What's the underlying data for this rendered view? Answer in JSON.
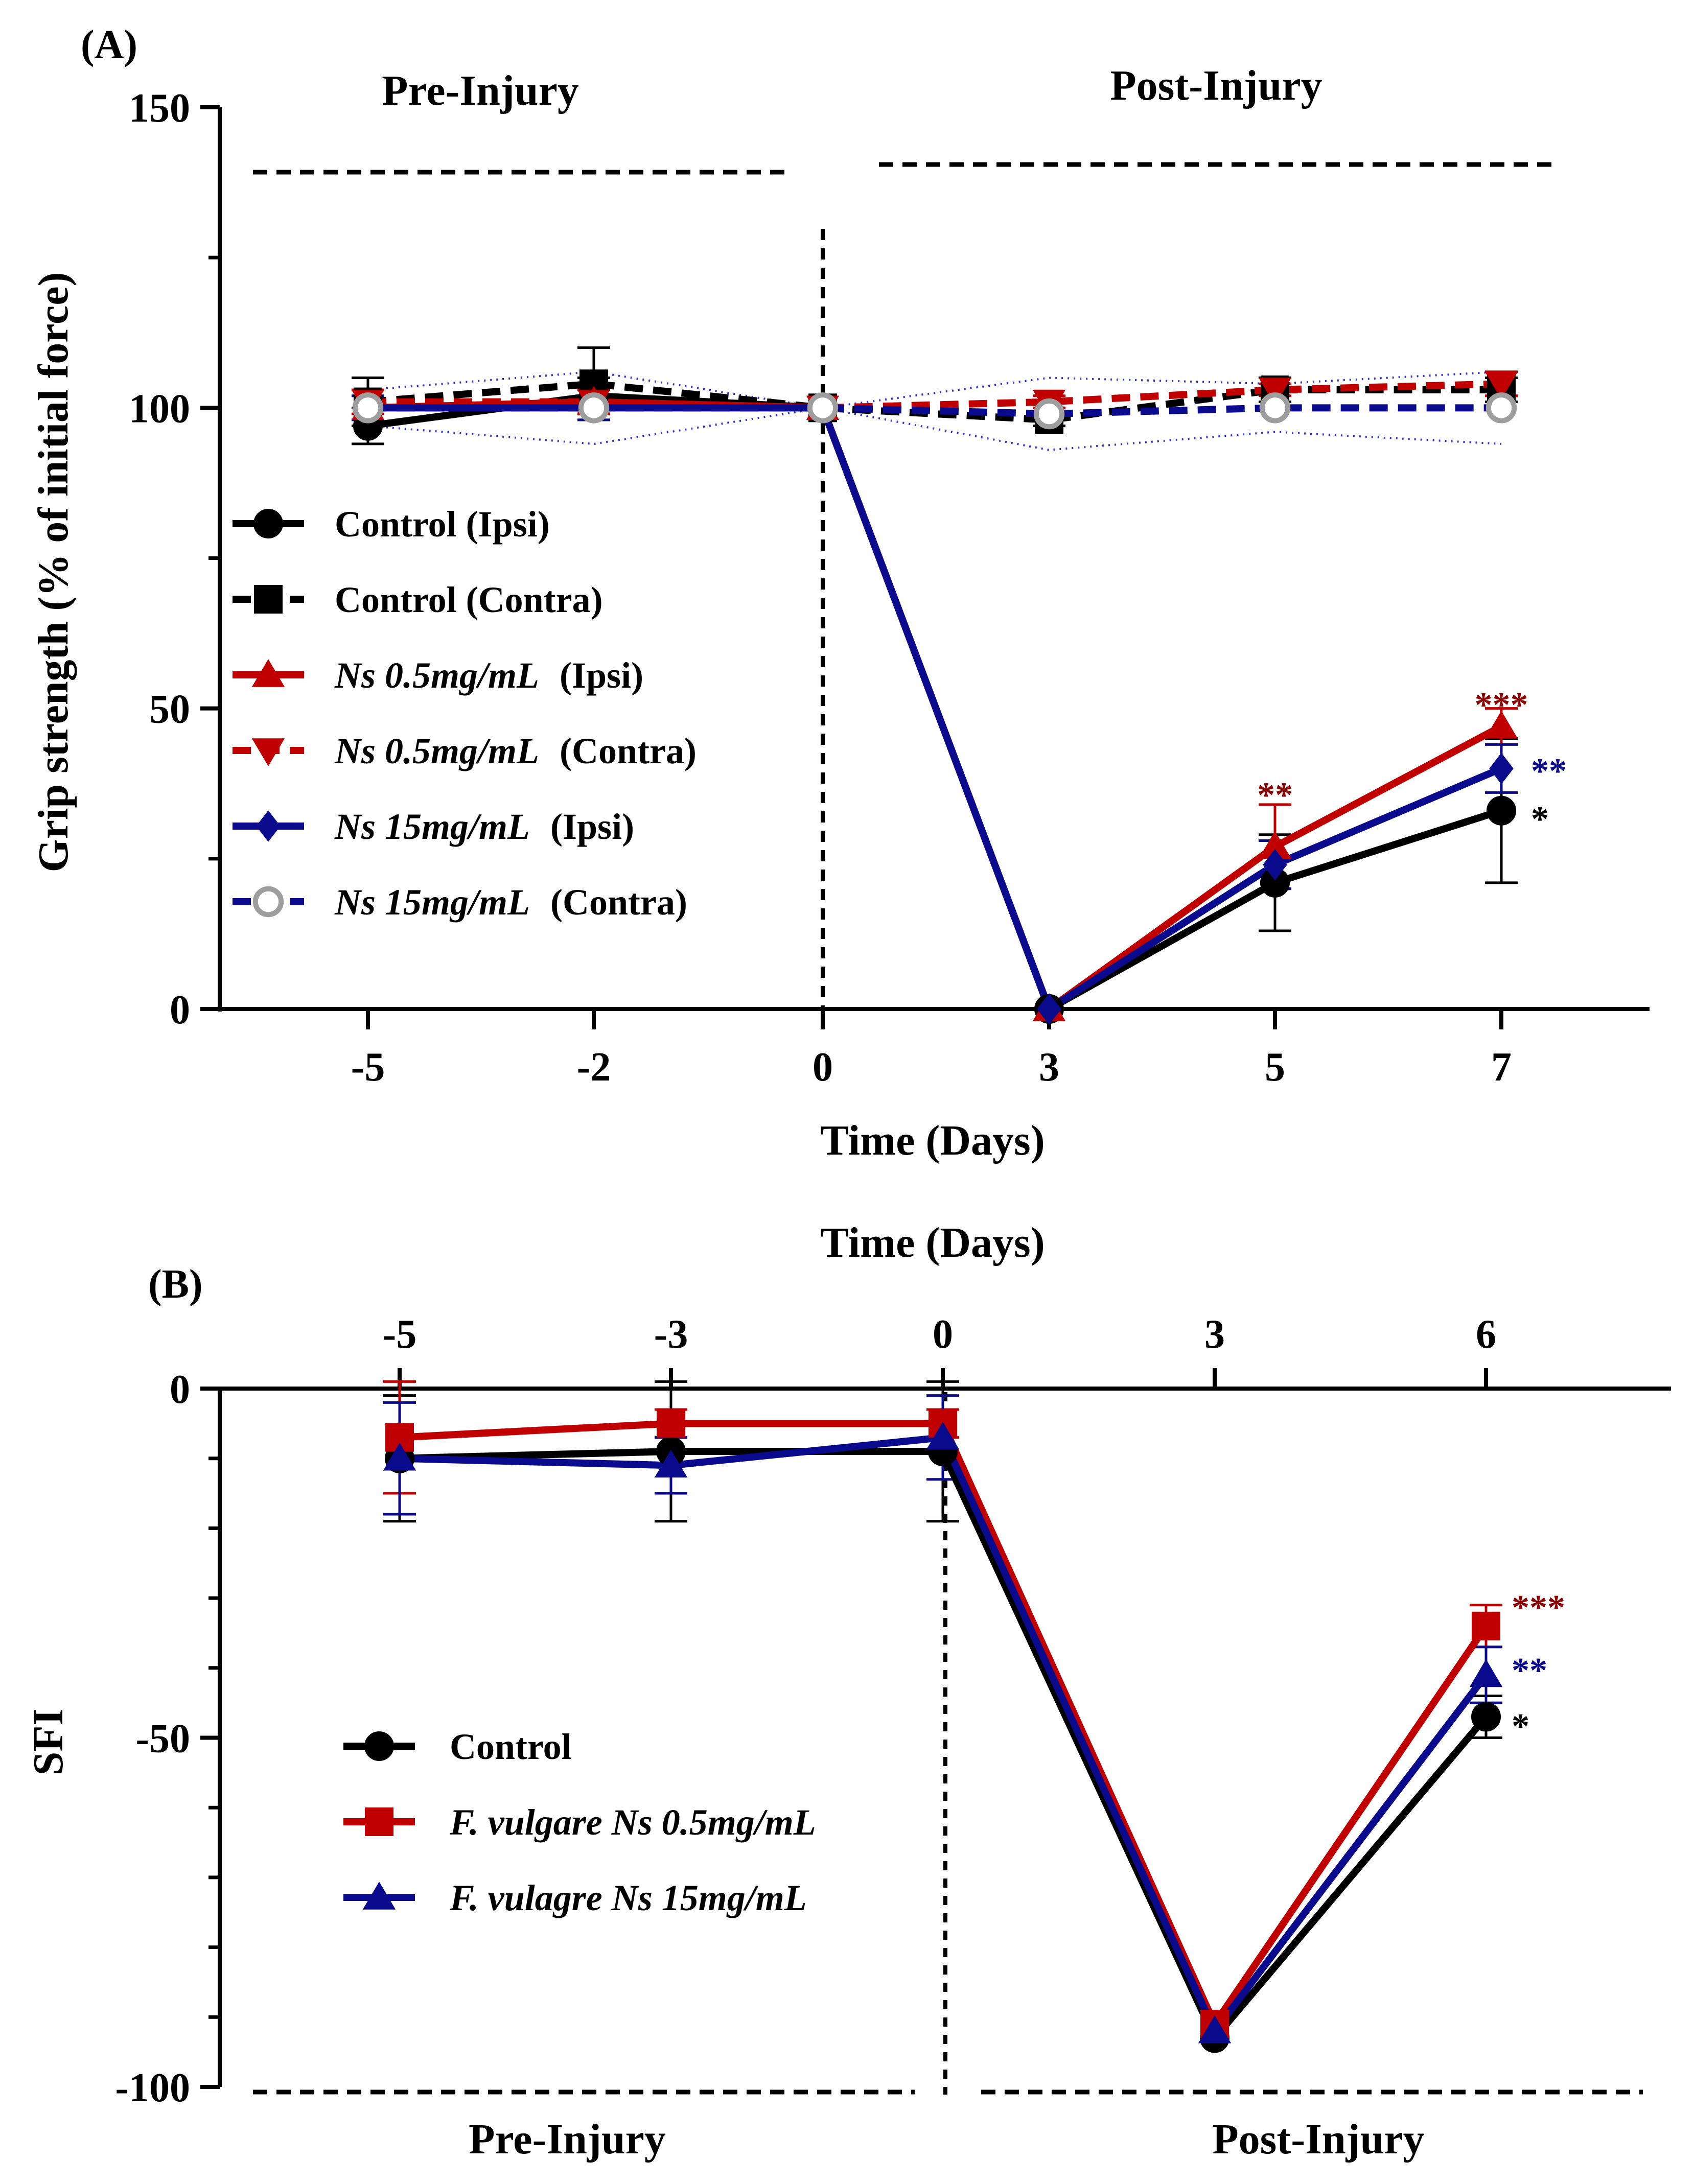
{
  "panel_a_label": "(A)",
  "panel_b_label": "(B)",
  "chart_data": [
    {
      "type": "line",
      "panel": "(A)",
      "xlabel": "Time (Days)",
      "ylabel": "Grip strength (% of initial force)",
      "x": [
        -5,
        -2,
        0,
        3,
        5,
        7
      ],
      "x_tick_labels": [
        "-5",
        "-2",
        "0",
        "3",
        "5",
        "7"
      ],
      "y_ticks": [
        "0",
        "50",
        "100",
        "150"
      ],
      "ylim": [
        0,
        150
      ],
      "grid": false,
      "legend_position": "left-middle",
      "section_labels": {
        "pre": "Pre-Injury",
        "post": "Post-Injury"
      },
      "series": [
        {
          "name": "Control (Ipsi)",
          "name_italic": "",
          "name_plain": "Control (Ipsi)",
          "color": "#000000",
          "marker": "circle",
          "dashed": false,
          "values": [
            97,
            102,
            100,
            0,
            21,
            33
          ],
          "err": [
            3,
            3,
            0,
            0,
            8,
            12
          ]
        },
        {
          "name": "Control (Contra)",
          "name_italic": "",
          "name_plain": "Control (Contra)",
          "color": "#000000",
          "marker": "square",
          "dashed": true,
          "values": [
            101,
            104,
            100,
            98,
            103,
            103
          ],
          "err": [
            4,
            6,
            0,
            1,
            2,
            2
          ]
        },
        {
          "name": "Ns 0.5mg/mL  (Ipsi)",
          "name_italic": "Ns 0.5mg/mL",
          "name_plain": " (Ipsi)",
          "color": "#c00000",
          "marker": "triangle-up",
          "dashed": false,
          "values": [
            100,
            101,
            100,
            0,
            27,
            47
          ],
          "err": [
            2,
            2,
            0,
            0,
            7,
            3
          ]
        },
        {
          "name": "Ns 0.5mg/mL  (Contra)",
          "name_italic": "Ns 0.5mg/mL",
          "name_plain": " (Contra)",
          "color": "#c00000",
          "marker": "triangle-down",
          "dashed": true,
          "values": [
            101,
            101,
            100,
            101,
            103,
            104
          ],
          "err": [
            2,
            2,
            0,
            1,
            1,
            2
          ]
        },
        {
          "name": "Ns 15mg/mL  (Ipsi)",
          "name_italic": "Ns 15mg/mL",
          "name_plain": " (Ipsi)",
          "color": "#0a0a8c",
          "marker": "diamond",
          "dashed": false,
          "values": [
            100,
            100,
            100,
            0,
            24,
            40
          ],
          "err": [
            2,
            2,
            0,
            0,
            4,
            4
          ]
        },
        {
          "name": "Ns 15mg/mL  (Contra)",
          "name_italic": "Ns 15mg/mL",
          "name_plain": " (Contra)",
          "color": "#0a0a8c",
          "marker": "circle-open",
          "marker_color": "#9e9e9e",
          "dashed": true,
          "values": [
            100,
            100,
            100,
            99,
            100,
            100
          ],
          "err": [
            3,
            6,
            0,
            6,
            4,
            6
          ]
        }
      ],
      "annotations": [
        {
          "x": 5,
          "y": 36,
          "text": "**",
          "color": "#8b0000",
          "anchor": "middle"
        },
        {
          "x": 7,
          "y": 51,
          "text": "***",
          "color": "#8b0000",
          "anchor": "middle"
        },
        {
          "x": 7,
          "y": 40,
          "text": "**",
          "color": "#0a0a8c",
          "anchor": "start"
        },
        {
          "x": 7,
          "y": 32,
          "text": "*",
          "color": "#000000",
          "anchor": "start"
        }
      ]
    },
    {
      "type": "line",
      "panel": "(B)",
      "xlabel": "Time (Days)",
      "ylabel": "SFI",
      "x": [
        -5,
        -3,
        0,
        3,
        6
      ],
      "x_tick_labels": [
        "-5",
        "-3",
        "0",
        "3",
        "6"
      ],
      "y_ticks": [
        "0",
        "-50",
        "-100"
      ],
      "ylim": [
        -100,
        0
      ],
      "grid": false,
      "legend_position": "left-bottom",
      "section_labels": {
        "pre": "Pre-Injury",
        "post": "Post-Injury"
      },
      "series": [
        {
          "name": "Control",
          "name_italic": "",
          "name_plain": "Control",
          "color": "#000000",
          "marker": "circle",
          "values": [
            -10,
            -9,
            -9,
            -93,
            -47
          ],
          "err": [
            9,
            10,
            10,
            0,
            3
          ]
        },
        {
          "name": "F. vulgare Ns 0.5mg/mL",
          "name_italic": "F. vulgare Ns 0.5mg/mL",
          "name_plain": "",
          "color": "#c00000",
          "marker": "square",
          "values": [
            -7,
            -5,
            -5,
            -91,
            -34
          ],
          "err": [
            8,
            2,
            2,
            0,
            3
          ]
        },
        {
          "name": "F. vulagre Ns 15mg/mL",
          "name_italic": "F. vulagre Ns 15mg/mL",
          "name_plain": "",
          "color": "#0a0a8c",
          "marker": "triangle-up",
          "values": [
            -10,
            -11,
            -7,
            -92,
            -41
          ],
          "err": [
            8,
            4,
            6,
            0,
            4
          ]
        }
      ],
      "annotations": [
        {
          "x": 6,
          "y": -31,
          "text": "***",
          "color": "#8b0000",
          "anchor": "start"
        },
        {
          "x": 6,
          "y": -40,
          "text": "**",
          "color": "#0a0a8c",
          "anchor": "start"
        },
        {
          "x": 6,
          "y": -48,
          "text": "*",
          "color": "#000000",
          "anchor": "start"
        }
      ]
    }
  ]
}
